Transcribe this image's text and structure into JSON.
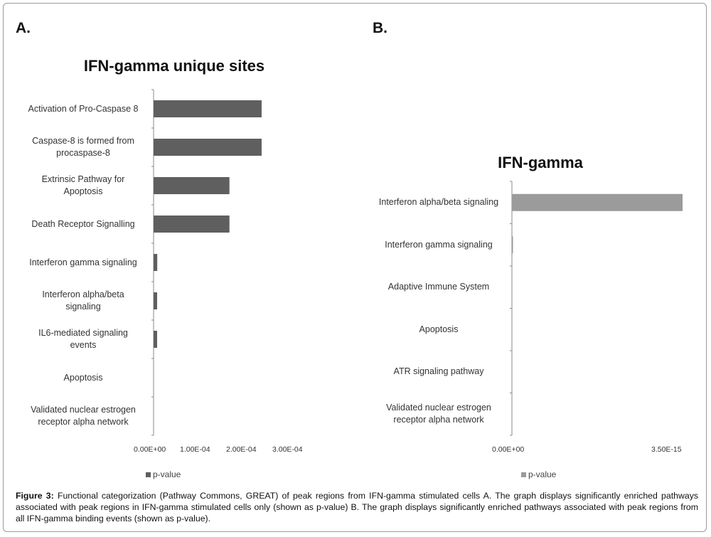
{
  "panels": {
    "a": {
      "label": "A."
    },
    "b": {
      "label": "B."
    }
  },
  "colors": {
    "bar_dark": "#5f5f5f",
    "bar_light": "#9b9b9b",
    "axis": "#8a8a8a"
  },
  "chart_data": [
    {
      "type": "bar",
      "orientation": "horizontal",
      "title": "IFN-gamma unique sites",
      "categories": [
        "Activation of Pro-Caspase 8",
        "Caspase-8 is formed from\nprocaspase-8",
        "Extrinsic Pathway for\nApoptosis",
        "Death Receptor Signalling",
        "Interferon gamma signaling",
        "Interferon alpha/beta\nsignaling",
        "IL6-mediated signaling\nevents",
        "Apoptosis",
        "Validated nuclear estrogen\nreceptor alpha network"
      ],
      "series": [
        {
          "name": "p-value",
          "values": [
            0.000235,
            0.000235,
            0.000165,
            0.000165,
            8e-06,
            2e-06,
            2e-06,
            0.0,
            0.0
          ]
        }
      ],
      "xticks": [
        "0.00E+00",
        "1.00E-04",
        "2.00E-04",
        "3.00E-04"
      ],
      "xlim": [
        0,
        0.0003
      ],
      "legend": "p-value",
      "legend_position": "bottom-left"
    },
    {
      "type": "bar",
      "orientation": "horizontal",
      "title": "IFN-gamma",
      "categories": [
        "Interferon alpha/beta signaling",
        "Interferon gamma signaling",
        "Adaptive Immune System",
        "Apoptosis",
        "ATR signaling pathway",
        "Validated nuclear estrogen\nreceptor alpha network"
      ],
      "series": [
        {
          "name": "p-value",
          "values": [
            3.6e-15,
            2e-17,
            0,
            0,
            0,
            0
          ]
        }
      ],
      "xticks": [
        "0.00E+00",
        "3.50E-15"
      ],
      "xlim": [
        0,
        3.6e-15
      ],
      "legend": "p-value",
      "legend_position": "bottom-left"
    }
  ],
  "caption": {
    "label": "Figure 3:",
    "text": "Functional categorization (Pathway Commons, GREAT) of peak regions from IFN-gamma stimulated cells A. The graph displays significantly enriched pathways associated with peak regions in IFN-gamma stimulated cells only (shown as p-value) B. The graph displays significantly enriched pathways associated with peak regions from all IFN-gamma binding events (shown as p-value)."
  }
}
